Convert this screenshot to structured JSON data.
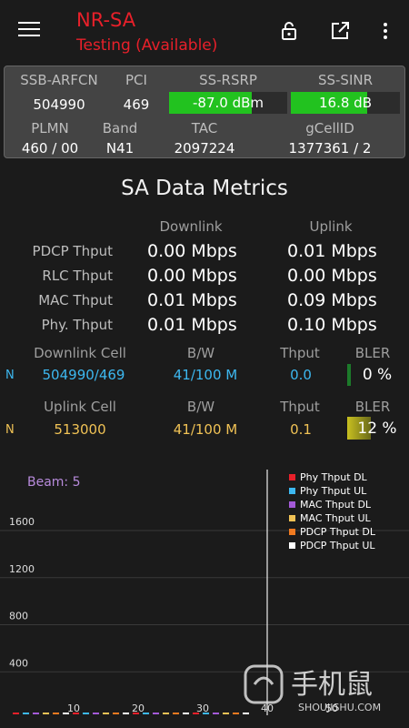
{
  "appbar": {
    "title": "NR-SA",
    "subtitle": "Testing (Available)"
  },
  "info": {
    "headers1": [
      "SSB-ARFCN",
      "PCI",
      "SS-RSRP",
      "SS-SINR"
    ],
    "ssb_arfcn": "504990",
    "pci": "469",
    "ss_rsrp": "-87.0 dBm",
    "ss_rsrp_level": 0.7,
    "ss_sinr": "16.8 dB",
    "ss_sinr_level": 0.7,
    "headers2": [
      "PLMN",
      "Band",
      "TAC",
      "gCellID"
    ],
    "plmn": "460 / 00",
    "band": "N41",
    "tac": "2097224",
    "gcellid": "1377361 / 2",
    "bar_color": "#22c21f"
  },
  "metrics": {
    "title": "SA Data Metrics",
    "downlink_hdr": "Downlink",
    "uplink_hdr": "Uplink",
    "rows": [
      {
        "label": "PDCP Thput",
        "dl": "0.00 Mbps",
        "ul": "0.01 Mbps"
      },
      {
        "label": "RLC Thput",
        "dl": "0.00 Mbps",
        "ul": "0.00 Mbps"
      },
      {
        "label": "MAC Thput",
        "dl": "0.01 Mbps",
        "ul": "0.09 Mbps"
      },
      {
        "label": "Phy. Thput",
        "dl": "0.01 Mbps",
        "ul": "0.10 Mbps"
      }
    ]
  },
  "cells": {
    "dl_hdr": [
      "Downlink Cell",
      "B/W",
      "Thput",
      "BLER"
    ],
    "dl_row": {
      "tag": "N",
      "cell": "504990/469",
      "bw": "41/100 M",
      "thput": "0.0",
      "bler": "0 %",
      "bler_level": 0.0
    },
    "ul_hdr": [
      "Uplink Cell",
      "B/W",
      "Thput",
      "BLER"
    ],
    "ul_row": {
      "tag": "N",
      "cell": "513000",
      "bw": "41/100 M",
      "thput": "0.1",
      "bler": "12 %",
      "bler_level": 0.12
    },
    "dl_color": "#3db8f0",
    "ul_color": "#f0c255"
  },
  "chart_data": {
    "type": "line",
    "title": "Beam: 5",
    "y_ticks": [
      400,
      800,
      1200,
      1600
    ],
    "x_ticks": [
      10,
      20,
      30,
      40,
      50
    ],
    "ylim": [
      0,
      1600
    ],
    "xlim": [
      0,
      50
    ],
    "marker_x": 40,
    "grid": true,
    "legend_position": "top-right",
    "series": [
      {
        "name": "Phy Thput DL",
        "color": "#e8202a",
        "values": []
      },
      {
        "name": "Phy Thput UL",
        "color": "#3db8f0",
        "values": []
      },
      {
        "name": "MAC Thput DL",
        "color": "#a45ad8",
        "values": []
      },
      {
        "name": "MAC Thput UL",
        "color": "#f0c255",
        "values": []
      },
      {
        "name": "PDCP Thput DL",
        "color": "#f07a20",
        "values": []
      },
      {
        "name": "PDCP Thput UL",
        "color": "#ffffff",
        "values": []
      }
    ]
  },
  "watermark": {
    "cn": "手机鼠",
    "en": "SHOUJISHU.COM"
  }
}
